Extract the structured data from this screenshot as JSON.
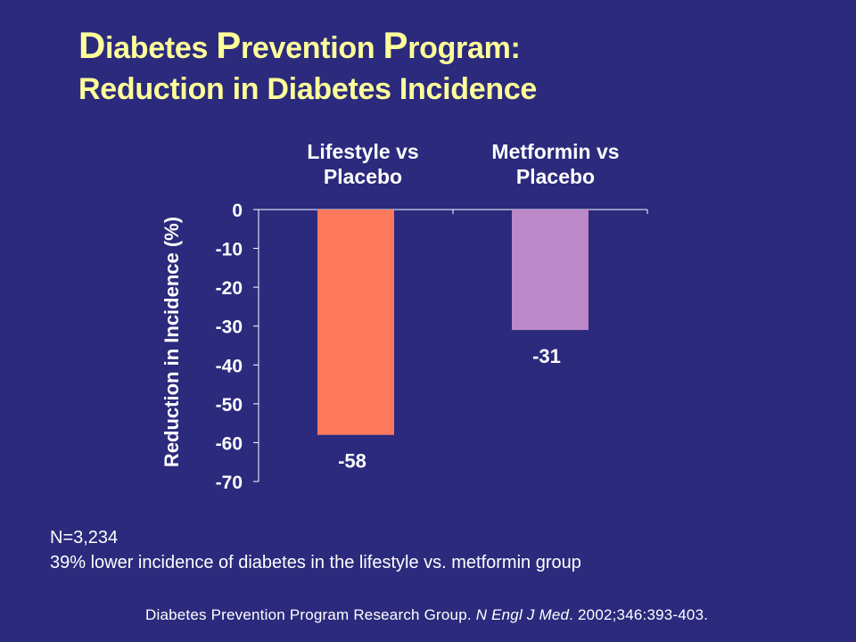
{
  "title": {
    "line1": [
      {
        "cap": "D",
        "rest": "iabetes "
      },
      {
        "cap": "P",
        "rest": "revention "
      },
      {
        "cap": "P",
        "rest": "rogram:"
      }
    ],
    "line2": "Reduction in Diabetes Incidence"
  },
  "chart_data": {
    "type": "bar",
    "categories": [
      "Lifestyle vs Placebo",
      "Metformin vs Placebo"
    ],
    "category_lines": [
      [
        "Lifestyle vs",
        "Placebo"
      ],
      [
        "Metformin vs",
        "Placebo"
      ]
    ],
    "values": [
      -58,
      -31
    ],
    "data_labels": [
      "-58",
      "-31"
    ],
    "bar_colors": [
      "#ff7a5c",
      "#bb88c8"
    ],
    "ylabel": "Reduction in Incidence (%)",
    "ylim": [
      -70,
      0
    ],
    "yticks": [
      0,
      -10,
      -20,
      -30,
      -40,
      -50,
      -60,
      -70
    ],
    "grid": false
  },
  "notes": {
    "n": "N=3,234",
    "finding": "39% lower incidence of diabetes in the lifestyle vs. metformin group"
  },
  "citation": {
    "authors": "Diabetes Prevention Program Research Group.",
    "journal": "N Engl J Med",
    "details": ". 2002;346:393-403."
  },
  "colors": {
    "background": "#2b2a7d",
    "title": "#ffff99",
    "text": "#ffffff"
  }
}
